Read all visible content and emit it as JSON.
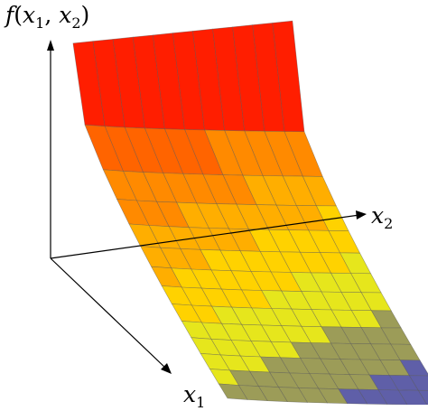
{
  "labels": {
    "f_prefix": "f",
    "f_open": "(",
    "f_var1": "x",
    "f_sub1": "1",
    "f_sep": ", ",
    "f_var2": "x",
    "f_sub2": "2",
    "f_close": ")",
    "x1_var": "x",
    "x1_sub": "1",
    "x2_var": "x",
    "x2_sub": "2"
  },
  "colors": {
    "axis": "#000000",
    "band_colors": [
      "#1f1fe0",
      "#5f5fa8",
      "#9c9c58",
      "#e6e61c",
      "#ffd200",
      "#ffae00",
      "#ff8a00",
      "#ff6400",
      "#ff3c00",
      "#ff1e00"
    ],
    "grid": "#555555"
  }
}
